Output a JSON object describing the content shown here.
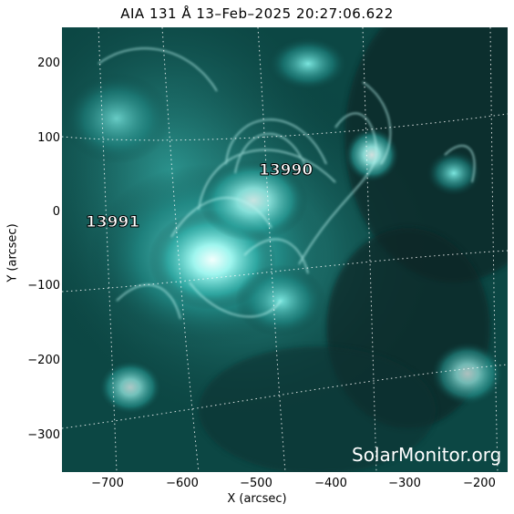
{
  "title": "AIA 131 Å 13–Feb–2025 20:27:06.622",
  "axes": {
    "xlabel": "X (arcsec)",
    "ylabel": "Y (arcsec)",
    "xticks": [
      "−700",
      "−600",
      "−500",
      "−400",
      "−300",
      "−200"
    ],
    "yticks": [
      "200",
      "100",
      "0",
      "−100",
      "−200",
      "−300"
    ]
  },
  "regions": [
    {
      "label": "13990"
    },
    {
      "label": "13991"
    }
  ],
  "watermark": "SolarMonitor.org",
  "colors": {
    "background": "#051e1e",
    "bright": "#c8fff8",
    "mid": "#2fb7b0",
    "dark": "#0a3a38"
  }
}
